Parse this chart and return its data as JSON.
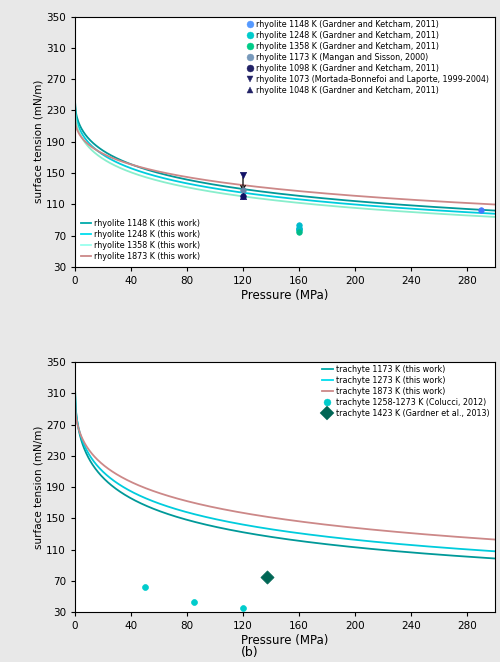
{
  "fig_width": 5.0,
  "fig_height": 6.62,
  "bg_color": "#e8e8e8",
  "ax_bg_color": "#ffffff",
  "top": {
    "ylim": [
      30,
      350
    ],
    "xlim": [
      0,
      300
    ],
    "yticks": [
      30,
      70,
      110,
      150,
      190,
      230,
      270,
      310,
      350
    ],
    "xticks": [
      0,
      40,
      80,
      120,
      160,
      200,
      240,
      280
    ],
    "xlabel": "Pressure (MPa)",
    "ylabel": "surface tension (mN/m)",
    "scatter_legend": [
      {
        "label": "rhyolite 1148 K (Gardner and Ketcham, 2011)",
        "color": "#5599ff",
        "marker": "o",
        "ms": 5
      },
      {
        "label": "rhyolite 1248 K (Gardner and Ketcham, 2011)",
        "color": "#00cccc",
        "marker": "o",
        "ms": 5
      },
      {
        "label": "rhyolite 1358 K (Gardner and Ketcham, 2011)",
        "color": "#00cc88",
        "marker": "o",
        "ms": 5
      },
      {
        "label": "rhyolite 1173 K (Mangan and Sisson, 2000)",
        "color": "#7799bb",
        "marker": "o",
        "ms": 5
      },
      {
        "label": "rhyolite 1098 K (Gardner and Ketcham, 2011)",
        "color": "#222266",
        "marker": "o",
        "ms": 5
      },
      {
        "label": "rhyolite 1073 (Mortada-Bonnefoi and Laporte, 1999-2004)",
        "color": "#222266",
        "marker": "v",
        "ms": 5
      },
      {
        "label": "rhyolite 1048 K (Gardner and Ketcham, 2011)",
        "color": "#222266",
        "marker": "^",
        "ms": 5
      }
    ],
    "curve_legend": [
      {
        "label": "rhyolite 1148 K (this work)",
        "color": "#00aaaa"
      },
      {
        "label": "rhyolite 1248 K (this work)",
        "color": "#00ddee"
      },
      {
        "label": "rhyolite 1358 K (this work)",
        "color": "#99ffee"
      },
      {
        "label": "rhyolite 1873 K (this work)",
        "color": "#cc8888"
      }
    ]
  },
  "bottom": {
    "ylim": [
      30,
      350
    ],
    "xlim": [
      0,
      300
    ],
    "yticks": [
      30,
      70,
      110,
      150,
      190,
      230,
      270,
      310,
      350
    ],
    "xticks": [
      0,
      40,
      80,
      120,
      160,
      200,
      240,
      280
    ],
    "xlabel": "Pressure (MPa)",
    "ylabel": "surface tension (mN/m)",
    "curve_legend": [
      {
        "label": "trachyte 1173 K (this work)",
        "color": "#00aaaa"
      },
      {
        "label": "trachyte 1273 K (this work)",
        "color": "#00ddee"
      },
      {
        "label": "trachyte 1873 K (this work)",
        "color": "#cc8888"
      }
    ],
    "scatter_legend": [
      {
        "label": "trachyte 1258-1273 K (Colucci, 2012)",
        "color": "#00cccc",
        "marker": "o",
        "ms": 5
      },
      {
        "label": "trachyte 1423 K (Gardner et al., 2013)",
        "color": "#006655",
        "marker": "D",
        "ms": 7
      }
    ]
  }
}
